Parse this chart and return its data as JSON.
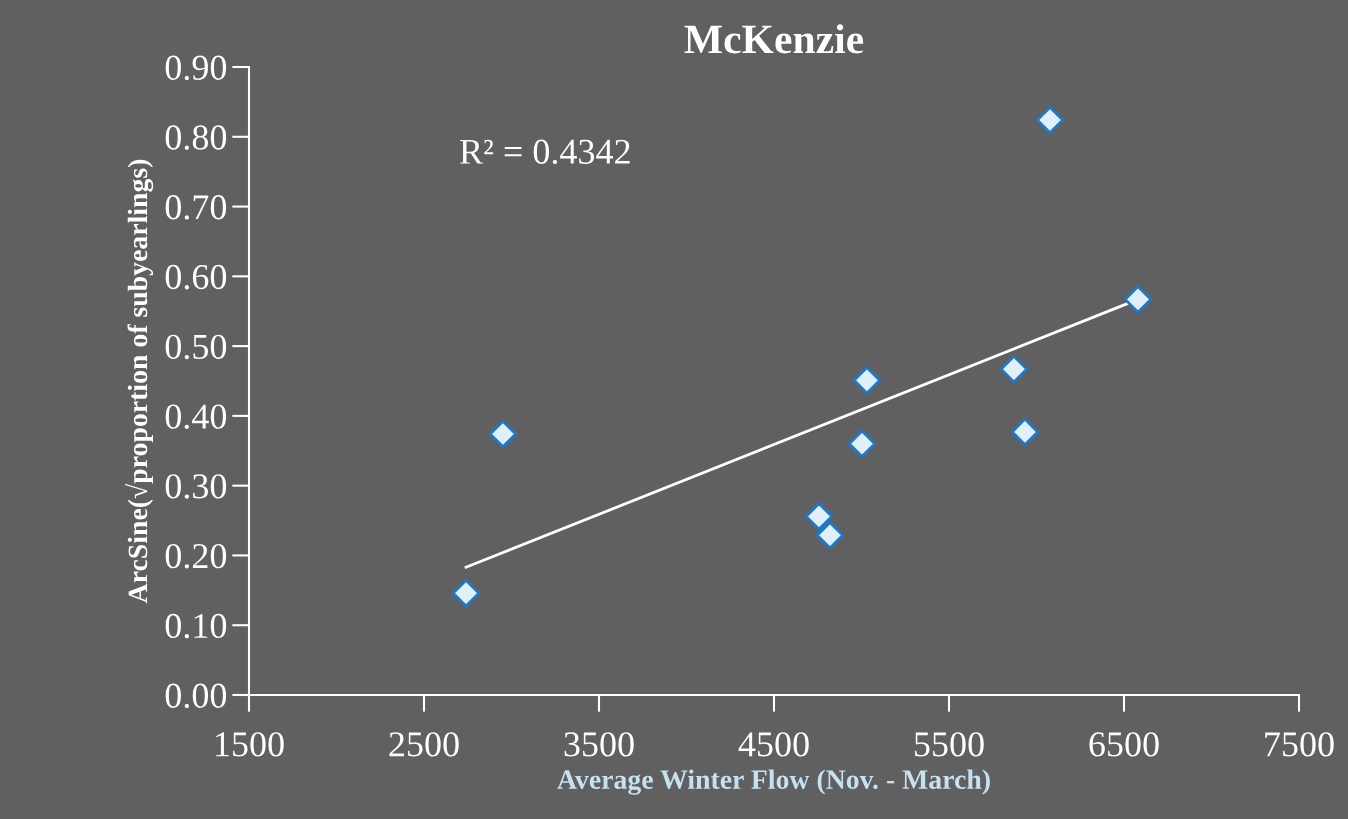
{
  "chart_data": {
    "type": "scatter",
    "title": "McKenzie",
    "xlabel": "Average Winter Flow (Nov. - March)",
    "ylabel": "ArcSine(√proportion of subyearlings)",
    "annotations": [
      "R² = 0.4342"
    ],
    "series": [
      {
        "color": "#dff0f8",
        "marker": "diamond",
        "x": [
          2740,
          2951,
          4757,
          4820,
          5003,
          5031,
          5871,
          5934,
          6077,
          6580
        ],
        "values": [
          0.146,
          0.374,
          0.256,
          0.229,
          0.36,
          0.451,
          0.467,
          0.377,
          0.824,
          0.567
        ]
      },
      {
        "type": "line",
        "color": "#ffffff",
        "marker": "none",
        "x": [
          2740,
          6580
        ],
        "values": [
          0.183,
          0.567
        ]
      }
    ],
    "xlim": [
      1500,
      7500
    ],
    "xticks": [
      1500,
      2500,
      3500,
      4500,
      5500,
      6500,
      7500
    ],
    "ylim": [
      0,
      0.9
    ],
    "yticks": [
      {
        "value": 0,
        "label": "0.00"
      },
      {
        "value": 0.1,
        "label": "0.10"
      },
      {
        "value": 0.2,
        "label": "0.20"
      },
      {
        "value": 0.3,
        "label": "0.30"
      },
      {
        "value": 0.4,
        "label": "0.40"
      },
      {
        "value": 0.5,
        "label": "0.50"
      },
      {
        "value": 0.6,
        "label": "0.60"
      },
      {
        "value": 0.7,
        "label": "0.70"
      },
      {
        "value": 0.8,
        "label": "0.80"
      },
      {
        "value": 0.9,
        "label": "0.90"
      }
    ],
    "grid": false,
    "legend": false
  }
}
